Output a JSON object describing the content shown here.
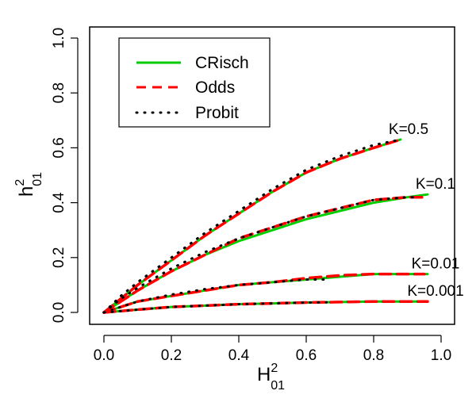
{
  "chart_data": {
    "type": "line",
    "xlabel": "H",
    "xlabel_sup": "2",
    "xlabel_sub": "01",
    "ylabel": "h",
    "ylabel_sup": "2",
    "ylabel_sub": "01",
    "xlim": [
      0,
      1
    ],
    "ylim": [
      0,
      1
    ],
    "xticks": [
      0.0,
      0.2,
      0.4,
      0.6,
      0.8,
      1.0
    ],
    "yticks": [
      0.0,
      0.2,
      0.4,
      0.6,
      0.8,
      1.0
    ],
    "xtick_labels": [
      "0.0",
      "0.2",
      "0.4",
      "0.6",
      "0.8",
      "1.0"
    ],
    "ytick_labels": [
      "0.0",
      "0.2",
      "0.4",
      "0.6",
      "0.8",
      "1.0"
    ],
    "grid": false,
    "legend_position": "top-left",
    "series_styles": [
      {
        "name": "CRisch",
        "color": "#00cc00",
        "line": "solid"
      },
      {
        "name": "Odds",
        "color": "#ff0000",
        "line": "dashed"
      },
      {
        "name": "Probit",
        "color": "#000000",
        "line": "dotted"
      }
    ],
    "groups": [
      {
        "label": "K=0.5",
        "series": {
          "CRisch": {
            "x": [
              0,
              0.05,
              0.1,
              0.2,
              0.3,
              0.4,
              0.5,
              0.6,
              0.7,
              0.8,
              0.88
            ],
            "y": [
              0,
              0.05,
              0.1,
              0.19,
              0.28,
              0.36,
              0.44,
              0.51,
              0.56,
              0.6,
              0.63
            ]
          },
          "Odds": {
            "x": [
              0,
              0.05,
              0.1,
              0.2,
              0.3,
              0.4,
              0.5,
              0.6,
              0.7,
              0.8,
              0.88
            ],
            "y": [
              0,
              0.05,
              0.1,
              0.19,
              0.28,
              0.36,
              0.44,
              0.51,
              0.56,
              0.6,
              0.63
            ]
          },
          "Probit": {
            "x": [
              0,
              0.05,
              0.1,
              0.2,
              0.3,
              0.4,
              0.5,
              0.6,
              0.7,
              0.8,
              0.88
            ],
            "y": [
              0,
              0.06,
              0.11,
              0.2,
              0.29,
              0.37,
              0.45,
              0.52,
              0.57,
              0.61,
              0.63
            ]
          }
        }
      },
      {
        "label": "K=0.1",
        "series": {
          "CRisch": {
            "x": [
              0,
              0.05,
              0.1,
              0.2,
              0.3,
              0.4,
              0.5,
              0.6,
              0.7,
              0.8,
              0.9,
              0.96
            ],
            "y": [
              0,
              0.04,
              0.08,
              0.15,
              0.21,
              0.26,
              0.3,
              0.34,
              0.37,
              0.4,
              0.42,
              0.43
            ]
          },
          "Odds": {
            "x": [
              0,
              0.05,
              0.1,
              0.2,
              0.3,
              0.4,
              0.5,
              0.6,
              0.7,
              0.8,
              0.9,
              0.96
            ],
            "y": [
              0,
              0.04,
              0.08,
              0.15,
              0.21,
              0.27,
              0.31,
              0.35,
              0.38,
              0.41,
              0.42,
              0.42
            ]
          },
          "Probit": {
            "x": [
              0,
              0.05,
              0.1,
              0.2,
              0.3,
              0.4,
              0.5,
              0.6,
              0.7,
              0.8,
              0.9,
              0.93
            ],
            "y": [
              0,
              0.05,
              0.09,
              0.16,
              0.22,
              0.27,
              0.31,
              0.35,
              0.38,
              0.41,
              0.42,
              0.42
            ]
          }
        }
      },
      {
        "label": "K=0.01",
        "series": {
          "CRisch": {
            "x": [
              0,
              0.1,
              0.2,
              0.3,
              0.4,
              0.5,
              0.6,
              0.7,
              0.8,
              0.9,
              0.96
            ],
            "y": [
              0,
              0.04,
              0.06,
              0.08,
              0.1,
              0.11,
              0.12,
              0.13,
              0.14,
              0.14,
              0.14
            ]
          },
          "Odds": {
            "x": [
              0,
              0.1,
              0.2,
              0.3,
              0.4,
              0.5,
              0.6,
              0.7,
              0.8,
              0.9,
              0.95
            ],
            "y": [
              0,
              0.04,
              0.06,
              0.08,
              0.1,
              0.11,
              0.125,
              0.135,
              0.14,
              0.14,
              0.14
            ]
          },
          "Probit": {
            "x": [
              0,
              0.1,
              0.2,
              0.3,
              0.4,
              0.5,
              0.6,
              0.67
            ],
            "y": [
              0,
              0.04,
              0.065,
              0.085,
              0.1,
              0.11,
              0.12,
              0.12
            ]
          }
        }
      },
      {
        "label": "K=0.001",
        "series": {
          "CRisch": {
            "x": [
              0,
              0.1,
              0.2,
              0.3,
              0.4,
              0.5,
              0.6,
              0.7,
              0.8,
              0.9,
              0.96
            ],
            "y": [
              0,
              0.01,
              0.02,
              0.025,
              0.03,
              0.033,
              0.036,
              0.038,
              0.04,
              0.04,
              0.04
            ]
          },
          "Odds": {
            "x": [
              0,
              0.1,
              0.2,
              0.3,
              0.4,
              0.5,
              0.6,
              0.7,
              0.8,
              0.9,
              0.96
            ],
            "y": [
              0,
              0.01,
              0.02,
              0.025,
              0.03,
              0.033,
              0.036,
              0.038,
              0.04,
              0.04,
              0.04
            ]
          },
          "Probit": {
            "x": [
              0,
              0.1,
              0.2,
              0.3,
              0.4,
              0.5,
              0.6,
              0.67
            ],
            "y": [
              0,
              0.01,
              0.02,
              0.025,
              0.03,
              0.033,
              0.036,
              0.037
            ]
          }
        }
      }
    ]
  }
}
